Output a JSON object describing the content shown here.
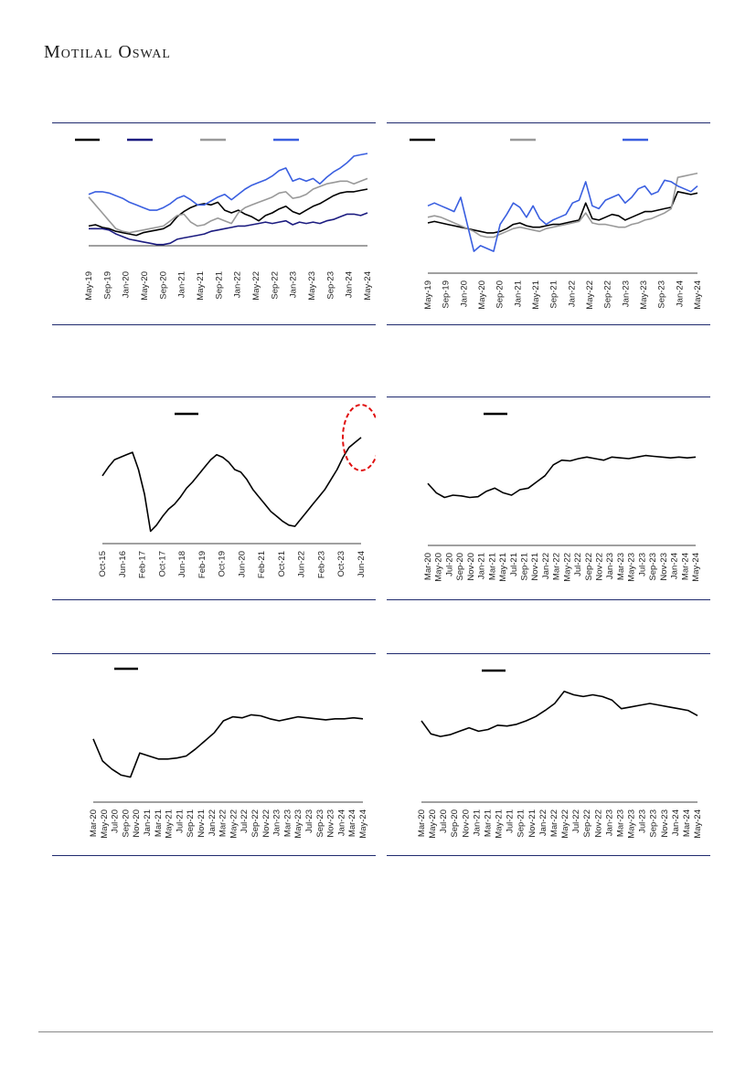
{
  "header": {
    "brand": "Motilal Oswal"
  },
  "chart_data": [
    {
      "type": "line",
      "x_labels": [
        "May-19",
        "Sep-19",
        "Jan-20",
        "May-20",
        "Sep-20",
        "Jan-21",
        "May-21",
        "Sep-21",
        "Jan-22",
        "May-22",
        "Sep-22",
        "Jan-23",
        "May-23",
        "Sep-23",
        "Jan-24",
        "May-24"
      ],
      "series": [
        {
          "color": "#000000",
          "values": [
            46,
            47,
            45,
            44,
            42,
            41,
            40,
            39,
            41,
            42,
            43,
            44,
            47,
            53,
            57,
            60,
            62,
            63,
            62,
            64,
            58,
            56,
            58,
            55,
            53,
            50,
            54,
            56,
            59,
            61,
            57,
            55,
            58,
            61,
            63,
            66,
            69,
            71,
            72,
            72,
            73,
            74
          ]
        },
        {
          "color": "#1c1c80",
          "values": [
            44,
            44,
            44,
            43,
            40,
            38,
            36,
            35,
            34,
            33,
            32,
            32,
            33,
            36,
            37,
            38,
            39,
            40,
            42,
            43,
            44,
            45,
            46,
            46,
            47,
            48,
            49,
            48,
            49,
            50,
            47,
            49,
            48,
            49,
            48,
            50,
            51,
            53,
            55,
            55,
            54,
            56
          ]
        },
        {
          "color": "#999999",
          "values": [
            68,
            62,
            56,
            50,
            44,
            42,
            41,
            42,
            43,
            44,
            45,
            46,
            50,
            54,
            55,
            49,
            46,
            47,
            50,
            52,
            50,
            48,
            56,
            60,
            62,
            64,
            66,
            68,
            71,
            72,
            67,
            68,
            70,
            74,
            76,
            78,
            79,
            80,
            80,
            78,
            80,
            82
          ]
        },
        {
          "color": "#3a5fe0",
          "values": [
            70,
            72,
            72,
            71,
            69,
            67,
            64,
            62,
            60,
            58,
            58,
            60,
            63,
            67,
            69,
            66,
            62,
            62,
            65,
            68,
            70,
            66,
            70,
            74,
            77,
            79,
            81,
            84,
            88,
            90,
            80,
            82,
            80,
            82,
            78,
            83,
            87,
            90,
            94,
            99,
            100,
            101
          ]
        }
      ]
    },
    {
      "type": "line",
      "x_labels": [
        "May-19",
        "Sep-19",
        "Jan-20",
        "May-20",
        "Sep-20",
        "Jan-21",
        "May-21",
        "Sep-21",
        "Jan-22",
        "May-22",
        "Sep-22",
        "Jan-23",
        "May-23",
        "Sep-23",
        "Jan-24",
        "May-24"
      ],
      "series": [
        {
          "color": "#000000",
          "values": [
            56,
            57,
            56,
            55,
            54,
            53,
            52,
            51,
            50,
            49,
            49,
            50,
            52,
            55,
            56,
            54,
            53,
            53,
            54,
            55,
            55,
            56,
            57,
            58,
            70,
            59,
            58,
            60,
            62,
            61,
            58,
            60,
            62,
            64,
            64,
            65,
            66,
            67,
            78,
            77,
            76,
            77
          ]
        },
        {
          "color": "#999999",
          "values": [
            60,
            61,
            60,
            58,
            56,
            54,
            52,
            50,
            47,
            46,
            46,
            48,
            50,
            52,
            53,
            52,
            51,
            50,
            52,
            53,
            54,
            55,
            56,
            57,
            63,
            56,
            55,
            55,
            54,
            53,
            53,
            55,
            56,
            58,
            59,
            61,
            63,
            66,
            88,
            89,
            90,
            91
          ]
        },
        {
          "color": "#3a5fe0",
          "values": [
            68,
            70,
            68,
            66,
            64,
            74,
            55,
            36,
            40,
            38,
            36,
            55,
            62,
            70,
            67,
            60,
            68,
            59,
            55,
            58,
            60,
            62,
            70,
            72,
            85,
            68,
            66,
            72,
            74,
            76,
            70,
            74,
            80,
            82,
            76,
            78,
            86,
            85,
            82,
            80,
            78,
            82
          ]
        }
      ]
    },
    {
      "type": "line",
      "x_labels": [
        "Oct-15",
        "Jun-16",
        "Feb-17",
        "Oct-17",
        "Jun-18",
        "Feb-19",
        "Oct-19",
        "Jun-20",
        "Feb-21",
        "Oct-21",
        "Jun-22",
        "Feb-23",
        "Oct-23",
        "Jun-24"
      ],
      "series": [
        {
          "color": "#000000",
          "values": [
            55,
            62,
            68,
            70,
            72,
            74,
            60,
            40,
            10,
            15,
            22,
            28,
            32,
            38,
            45,
            50,
            56,
            62,
            68,
            72,
            70,
            66,
            60,
            58,
            52,
            44,
            38,
            32,
            26,
            22,
            18,
            15,
            14,
            20,
            26,
            32,
            38,
            44,
            52,
            60,
            70,
            78,
            82,
            86
          ]
        }
      ]
    },
    {
      "type": "line",
      "x_labels": [
        "Mar-20",
        "May-20",
        "Jul-20",
        "Sep-20",
        "Nov-20",
        "Jan-21",
        "Mar-21",
        "May-21",
        "Jul-21",
        "Sep-21",
        "Nov-21",
        "Jan-22",
        "Mar-22",
        "May-22",
        "Jul-22",
        "Sep-22",
        "Nov-22",
        "Jan-23",
        "Mar-23",
        "May-23",
        "Jul-23",
        "Sep-23",
        "Nov-23",
        "Jan-24",
        "Mar-24",
        "May-24"
      ],
      "series": [
        {
          "color": "#000000",
          "values": [
            48,
            36,
            30,
            33,
            32,
            30,
            31,
            38,
            42,
            36,
            33,
            40,
            42,
            50,
            58,
            72,
            78,
            77,
            80,
            82,
            80,
            78,
            82,
            81,
            80,
            82,
            84,
            83,
            82,
            81,
            82,
            81,
            82
          ]
        }
      ]
    },
    {
      "type": "line",
      "x_labels": [
        "Mar-20",
        "May-20",
        "Jul-20",
        "Sep-20",
        "Nov-20",
        "Jan-21",
        "Mar-21",
        "May-21",
        "Jul-21",
        "Sep-21",
        "Nov-21",
        "Jan-22",
        "Mar-22",
        "May-22",
        "Jul-22",
        "Sep-22",
        "Nov-22",
        "Jan-23",
        "Mar-23",
        "May-23",
        "Jul-23",
        "Sep-23",
        "Nov-23",
        "Jan-24",
        "Mar-24",
        "May-24"
      ],
      "series": [
        {
          "color": "#000000",
          "values": [
            52,
            30,
            22,
            16,
            14,
            38,
            35,
            32,
            32,
            33,
            35,
            42,
            50,
            58,
            70,
            74,
            73,
            76,
            75,
            72,
            70,
            72,
            74,
            73,
            72,
            71,
            72,
            72,
            73,
            72
          ]
        }
      ]
    },
    {
      "type": "line",
      "x_labels": [
        "Mar-20",
        "May-20",
        "Jul-20",
        "Sep-20",
        "Nov-20",
        "Jan-21",
        "Mar-21",
        "May-21",
        "Jul-21",
        "Sep-21",
        "Nov-21",
        "Jan-22",
        "Mar-22",
        "May-22",
        "Jul-22",
        "Sep-22",
        "Nov-22",
        "Jan-23",
        "Mar-23",
        "May-23",
        "Jul-23",
        "Sep-23",
        "Nov-23",
        "Jan-24",
        "Mar-24",
        "May-24"
      ],
      "series": [
        {
          "color": "#000000",
          "values": [
            60,
            45,
            42,
            44,
            48,
            52,
            48,
            50,
            55,
            54,
            56,
            60,
            65,
            72,
            80,
            94,
            90,
            88,
            90,
            88,
            84,
            74,
            76,
            78,
            80,
            78,
            76,
            74,
            72,
            66
          ]
        }
      ]
    }
  ]
}
